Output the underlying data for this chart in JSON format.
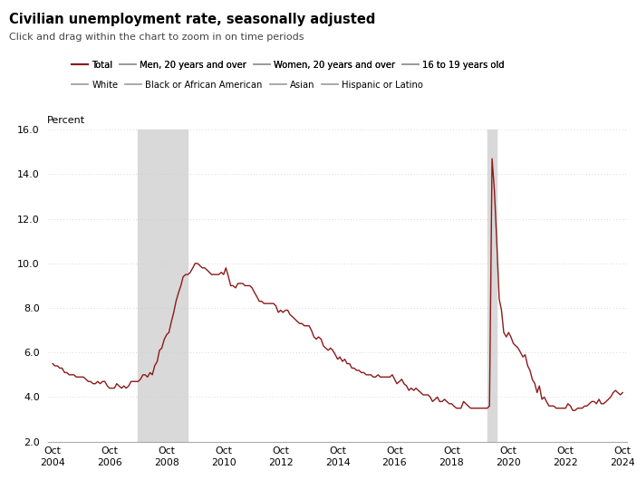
{
  "title": "Civilian unemployment rate, seasonally adjusted",
  "subtitle": "Click and drag within the chart to zoom in on time periods",
  "ylabel": "Percent",
  "line_color": "#8B1A1A",
  "background_color": "#ffffff",
  "grid_color": "#cccccc",
  "recession_color": "#d9d9d9",
  "recessions": [
    {
      "start": 2007.75,
      "end": 2009.5
    },
    {
      "start": 2020.0,
      "end": 2020.33
    }
  ],
  "ylim": [
    2.0,
    16.0
  ],
  "yticks": [
    2.0,
    4.0,
    6.0,
    8.0,
    10.0,
    12.0,
    14.0,
    16.0
  ],
  "xtick_years": [
    2004,
    2006,
    2008,
    2010,
    2012,
    2014,
    2016,
    2018,
    2020,
    2022,
    2024
  ],
  "legend_entries": [
    {
      "label": "Total",
      "color": "#8B1A1A",
      "lw": 1.5
    },
    {
      "label": "Men, 20 years and over",
      "color": "#999999",
      "lw": 1.2
    },
    {
      "label": "Women, 20 years and over",
      "color": "#999999",
      "lw": 1.2
    },
    {
      "label": "16 to 19 years old",
      "color": "#999999",
      "lw": 1.2
    },
    {
      "label": "White",
      "color": "#999999",
      "lw": 1.2
    },
    {
      "label": "Black or African American",
      "color": "#999999",
      "lw": 1.2
    },
    {
      "label": "Asian",
      "color": "#999999",
      "lw": 1.2
    },
    {
      "label": "Hispanic or Latino",
      "color": "#999999",
      "lw": 1.2
    }
  ],
  "data": {
    "dates": [
      2004.75,
      2004.83,
      2004.92,
      2005.0,
      2005.08,
      2005.17,
      2005.25,
      2005.33,
      2005.42,
      2005.5,
      2005.58,
      2005.67,
      2005.75,
      2005.83,
      2005.92,
      2006.0,
      2006.08,
      2006.17,
      2006.25,
      2006.33,
      2006.42,
      2006.5,
      2006.58,
      2006.67,
      2006.75,
      2006.83,
      2006.92,
      2007.0,
      2007.08,
      2007.17,
      2007.25,
      2007.33,
      2007.42,
      2007.5,
      2007.58,
      2007.67,
      2007.75,
      2007.83,
      2007.92,
      2008.0,
      2008.08,
      2008.17,
      2008.25,
      2008.33,
      2008.42,
      2008.5,
      2008.58,
      2008.67,
      2008.75,
      2008.83,
      2008.92,
      2009.0,
      2009.08,
      2009.17,
      2009.25,
      2009.33,
      2009.42,
      2009.5,
      2009.58,
      2009.67,
      2009.75,
      2009.83,
      2009.92,
      2010.0,
      2010.08,
      2010.17,
      2010.25,
      2010.33,
      2010.42,
      2010.5,
      2010.58,
      2010.67,
      2010.75,
      2010.83,
      2010.92,
      2011.0,
      2011.08,
      2011.17,
      2011.25,
      2011.33,
      2011.42,
      2011.5,
      2011.58,
      2011.67,
      2011.75,
      2011.83,
      2011.92,
      2012.0,
      2012.08,
      2012.17,
      2012.25,
      2012.33,
      2012.42,
      2012.5,
      2012.58,
      2012.67,
      2012.75,
      2012.83,
      2012.92,
      2013.0,
      2013.08,
      2013.17,
      2013.25,
      2013.33,
      2013.42,
      2013.5,
      2013.58,
      2013.67,
      2013.75,
      2013.83,
      2013.92,
      2014.0,
      2014.08,
      2014.17,
      2014.25,
      2014.33,
      2014.42,
      2014.5,
      2014.58,
      2014.67,
      2014.75,
      2014.83,
      2014.92,
      2015.0,
      2015.08,
      2015.17,
      2015.25,
      2015.33,
      2015.42,
      2015.5,
      2015.58,
      2015.67,
      2015.75,
      2015.83,
      2015.92,
      2016.0,
      2016.08,
      2016.17,
      2016.25,
      2016.33,
      2016.42,
      2016.5,
      2016.58,
      2016.67,
      2016.75,
      2016.83,
      2016.92,
      2017.0,
      2017.08,
      2017.17,
      2017.25,
      2017.33,
      2017.42,
      2017.5,
      2017.58,
      2017.67,
      2017.75,
      2017.83,
      2017.92,
      2018.0,
      2018.08,
      2018.17,
      2018.25,
      2018.33,
      2018.42,
      2018.5,
      2018.58,
      2018.67,
      2018.75,
      2018.83,
      2018.92,
      2019.0,
      2019.08,
      2019.17,
      2019.25,
      2019.33,
      2019.42,
      2019.5,
      2019.58,
      2019.67,
      2019.75,
      2019.83,
      2019.92,
      2020.0,
      2020.08,
      2020.17,
      2020.25,
      2020.33,
      2020.42,
      2020.5,
      2020.58,
      2020.67,
      2020.75,
      2020.83,
      2020.92,
      2021.0,
      2021.08,
      2021.17,
      2021.25,
      2021.33,
      2021.42,
      2021.5,
      2021.58,
      2021.67,
      2021.75,
      2021.83,
      2021.92,
      2022.0,
      2022.08,
      2022.17,
      2022.25,
      2022.33,
      2022.42,
      2022.5,
      2022.58,
      2022.67,
      2022.75,
      2022.83,
      2022.92,
      2023.0,
      2023.08,
      2023.17,
      2023.25,
      2023.33,
      2023.42,
      2023.5,
      2023.58,
      2023.67,
      2023.75,
      2023.83,
      2023.92,
      2024.0,
      2024.08,
      2024.17,
      2024.25,
      2024.33,
      2024.42,
      2024.5,
      2024.58,
      2024.67,
      2024.75
    ],
    "values": [
      5.5,
      5.4,
      5.4,
      5.3,
      5.3,
      5.1,
      5.1,
      5.0,
      5.0,
      5.0,
      4.9,
      4.9,
      4.9,
      4.9,
      4.8,
      4.7,
      4.7,
      4.6,
      4.6,
      4.7,
      4.6,
      4.7,
      4.7,
      4.5,
      4.4,
      4.4,
      4.4,
      4.6,
      4.5,
      4.4,
      4.5,
      4.4,
      4.5,
      4.7,
      4.7,
      4.7,
      4.7,
      4.8,
      5.0,
      5.0,
      4.9,
      5.1,
      5.0,
      5.4,
      5.6,
      6.1,
      6.2,
      6.6,
      6.8,
      6.9,
      7.4,
      7.8,
      8.3,
      8.7,
      9.0,
      9.4,
      9.5,
      9.5,
      9.6,
      9.8,
      10.0,
      10.0,
      9.9,
      9.8,
      9.8,
      9.7,
      9.6,
      9.5,
      9.5,
      9.5,
      9.5,
      9.6,
      9.5,
      9.8,
      9.4,
      9.0,
      9.0,
      8.9,
      9.1,
      9.1,
      9.1,
      9.0,
      9.0,
      9.0,
      8.9,
      8.7,
      8.5,
      8.3,
      8.3,
      8.2,
      8.2,
      8.2,
      8.2,
      8.2,
      8.1,
      7.8,
      7.9,
      7.8,
      7.9,
      7.9,
      7.7,
      7.6,
      7.5,
      7.4,
      7.3,
      7.3,
      7.2,
      7.2,
      7.2,
      7.0,
      6.7,
      6.6,
      6.7,
      6.6,
      6.3,
      6.2,
      6.1,
      6.2,
      6.1,
      5.9,
      5.7,
      5.8,
      5.6,
      5.7,
      5.5,
      5.5,
      5.3,
      5.3,
      5.2,
      5.2,
      5.1,
      5.1,
      5.0,
      5.0,
      5.0,
      4.9,
      4.9,
      5.0,
      4.9,
      4.9,
      4.9,
      4.9,
      4.9,
      5.0,
      4.8,
      4.6,
      4.7,
      4.8,
      4.6,
      4.5,
      4.3,
      4.4,
      4.3,
      4.4,
      4.3,
      4.2,
      4.1,
      4.1,
      4.1,
      4.0,
      3.8,
      3.9,
      4.0,
      3.8,
      3.8,
      3.9,
      3.8,
      3.7,
      3.7,
      3.6,
      3.5,
      3.5,
      3.5,
      3.8,
      3.7,
      3.6,
      3.5,
      3.5,
      3.5,
      3.5,
      3.5,
      3.5,
      3.5,
      3.5,
      3.6,
      14.7,
      13.3,
      11.1,
      8.4,
      7.9,
      6.9,
      6.7,
      6.9,
      6.7,
      6.4,
      6.3,
      6.2,
      6.0,
      5.8,
      5.9,
      5.4,
      5.2,
      4.8,
      4.6,
      4.2,
      4.5,
      3.9,
      4.0,
      3.8,
      3.6,
      3.6,
      3.6,
      3.5,
      3.5,
      3.5,
      3.5,
      3.5,
      3.7,
      3.6,
      3.4,
      3.4,
      3.5,
      3.5,
      3.5,
      3.6,
      3.6,
      3.7,
      3.8,
      3.8,
      3.7,
      3.9,
      3.7,
      3.7,
      3.8,
      3.9,
      4.0,
      4.2,
      4.3,
      4.2,
      4.1,
      4.2
    ]
  }
}
